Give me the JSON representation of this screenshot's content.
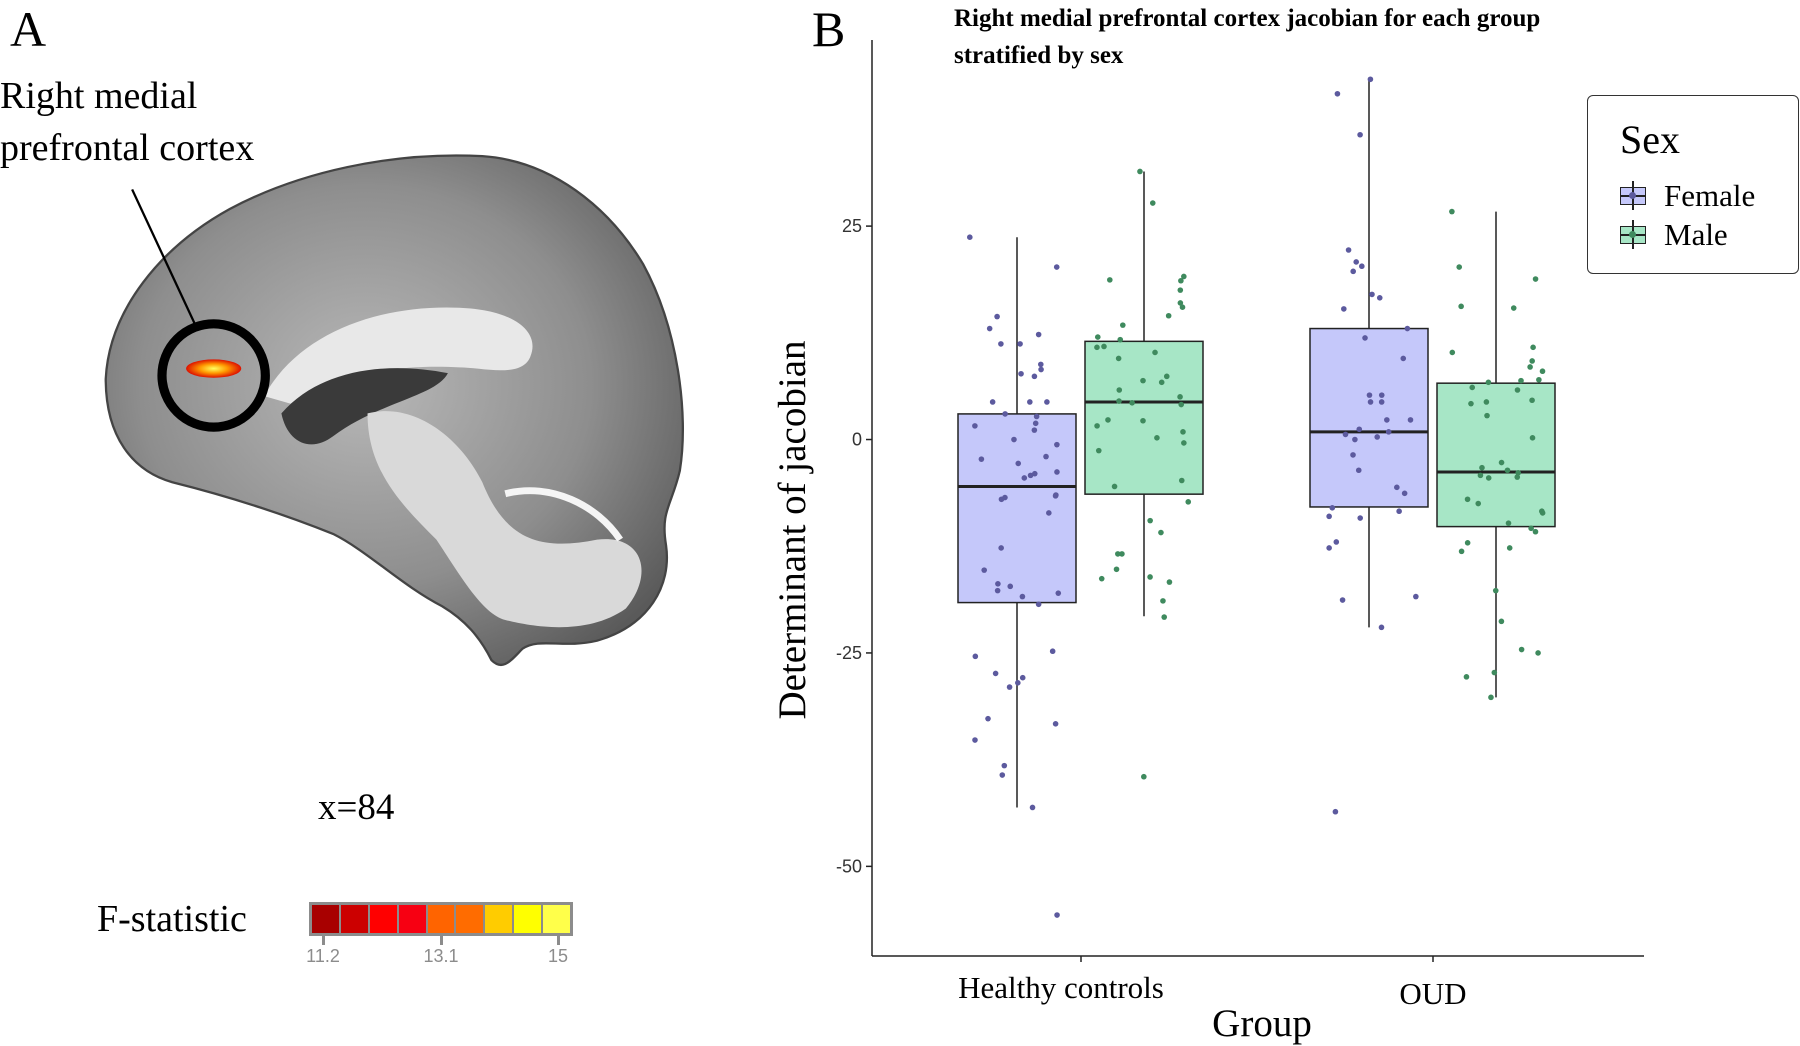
{
  "panel_a": {
    "letter": "A",
    "region_label_line1": "Right medial",
    "region_label_line2": "prefrontal cortex",
    "slice_label": "x=84",
    "colorbar": {
      "label": "F-statistic",
      "colors": [
        "#a80000",
        "#cc0000",
        "#ff0000",
        "#f70012",
        "#ff6400",
        "#ff6c00",
        "#ffcc00",
        "#ffff00",
        "#ffff4a"
      ],
      "ticks": [
        "11.2",
        "13.1",
        "15"
      ]
    }
  },
  "panel_b": {
    "letter": "B",
    "title_line1": "Right medial prefrontal cortex jacobian for each group",
    "title_line2": "stratified by sex"
  },
  "chart_data": {
    "type": "box",
    "xlabel": "Group",
    "ylabel": "Determinant of jacobian",
    "categories": [
      "Healthy controls",
      "OUD"
    ],
    "ylim": [
      -60.5,
      46.8
    ],
    "yticks": [
      25,
      0,
      -25,
      -50
    ],
    "ytick_labels": [
      "25",
      "0",
      "-25",
      "-50"
    ],
    "grid": false,
    "legend": {
      "title": "Sex",
      "position": "top-right"
    },
    "series": [
      {
        "name": "Female",
        "fill": "#c5c8fa",
        "point_color": "#5c5a9e",
        "boxes": [
          {
            "category": "Healthy controls",
            "whisker_low": -43.1,
            "q1": -19.1,
            "median": -5.5,
            "q3": 3.0,
            "whisker_high": 23.7,
            "points": [
              23.7,
              20.2,
              14.4,
              13.0,
              12.3,
              11.2,
              11.2,
              8.8,
              8.2,
              7.7,
              7.4,
              4.4,
              4.4,
              4.4,
              3.0,
              2.7,
              1.9,
              1.6,
              1.1,
              0,
              -0.6,
              -2.0,
              -2.3,
              -2.8,
              -3.8,
              -4.0,
              -4.2,
              -4.5,
              -6.5,
              -6.6,
              -6.8,
              -7.0,
              -8.6,
              -12.7,
              -15.3,
              -16.9,
              -17.2,
              -17.7,
              -18.0,
              -18.4,
              -19.3,
              -24.8,
              -25.4,
              -27.4,
              -27.9,
              -28.5,
              -29.0,
              -32.7,
              -33.3,
              -35.2,
              -38.2,
              -39.3,
              -43.1,
              -55.7
            ]
          },
          {
            "category": "OUD",
            "whisker_low": -22.0,
            "q1": -7.9,
            "median": 0.9,
            "q3": 13.0,
            "whisker_high": 42.2,
            "points": [
              42.2,
              40.5,
              35.7,
              22.2,
              20.8,
              20.3,
              19.7,
              17.0,
              16.6,
              15.3,
              13.0,
              11.9,
              9.5,
              5.2,
              4.4,
              4.4,
              5.2,
              2.3,
              2.3,
              1.2,
              0.9,
              0.6,
              0.3,
              0,
              -1.8,
              -3.6,
              -5.6,
              -6.3,
              -8.0,
              -8.4,
              -9.0,
              -9.2,
              -12.0,
              -12.7,
              -18.4,
              -18.8,
              -22.0,
              -43.6
            ]
          }
        ]
      },
      {
        "name": "Male",
        "fill": "#a7e6c6",
        "point_color": "#3f8a5e",
        "boxes": [
          {
            "category": "Healthy controls",
            "whisker_low": -20.7,
            "q1": -6.4,
            "median": 4.4,
            "q3": 11.5,
            "whisker_high": 31.4,
            "points": [
              31.4,
              27.7,
              18.7,
              19.1,
              17.5,
              18.6,
              16.0,
              15.5,
              14.5,
              13.4,
              12.0,
              11.7,
              10.9,
              10.8,
              10.2,
              9.5,
              7.4,
              6.9,
              6.7,
              5.8,
              5.0,
              4.5,
              4.3,
              4.1,
              2.3,
              2.2,
              1.6,
              0.9,
              0.2,
              -0.4,
              -1.3,
              -4.8,
              -5.5,
              -7.3,
              -9.5,
              -10.9,
              -13.4,
              -13.4,
              -15.2,
              -16.1,
              -16.3,
              -16.7,
              -18.9,
              -20.8,
              -39.5
            ]
          },
          {
            "category": "OUD",
            "whisker_low": -30.2,
            "q1": -10.2,
            "median": -3.8,
            "q3": 6.6,
            "whisker_high": 26.7,
            "points": [
              26.7,
              20.2,
              18.8,
              15.6,
              15.4,
              10.8,
              10.2,
              9.2,
              8.5,
              8.0,
              7.0,
              6.9,
              6.7,
              6.1,
              5.8,
              4.6,
              4.4,
              4.2,
              2.8,
              0.2,
              -2.7,
              -3.3,
              -3.6,
              -3.9,
              -4.2,
              -4.4,
              -4.5,
              -7.0,
              -7.5,
              -8.4,
              -8.6,
              -9.8,
              -10.4,
              -10.8,
              -12.1,
              -12.7,
              -13.1,
              -17.7,
              -21.3,
              -24.6,
              -25.0,
              -27.3,
              -27.8,
              -30.2
            ]
          }
        ]
      }
    ]
  }
}
